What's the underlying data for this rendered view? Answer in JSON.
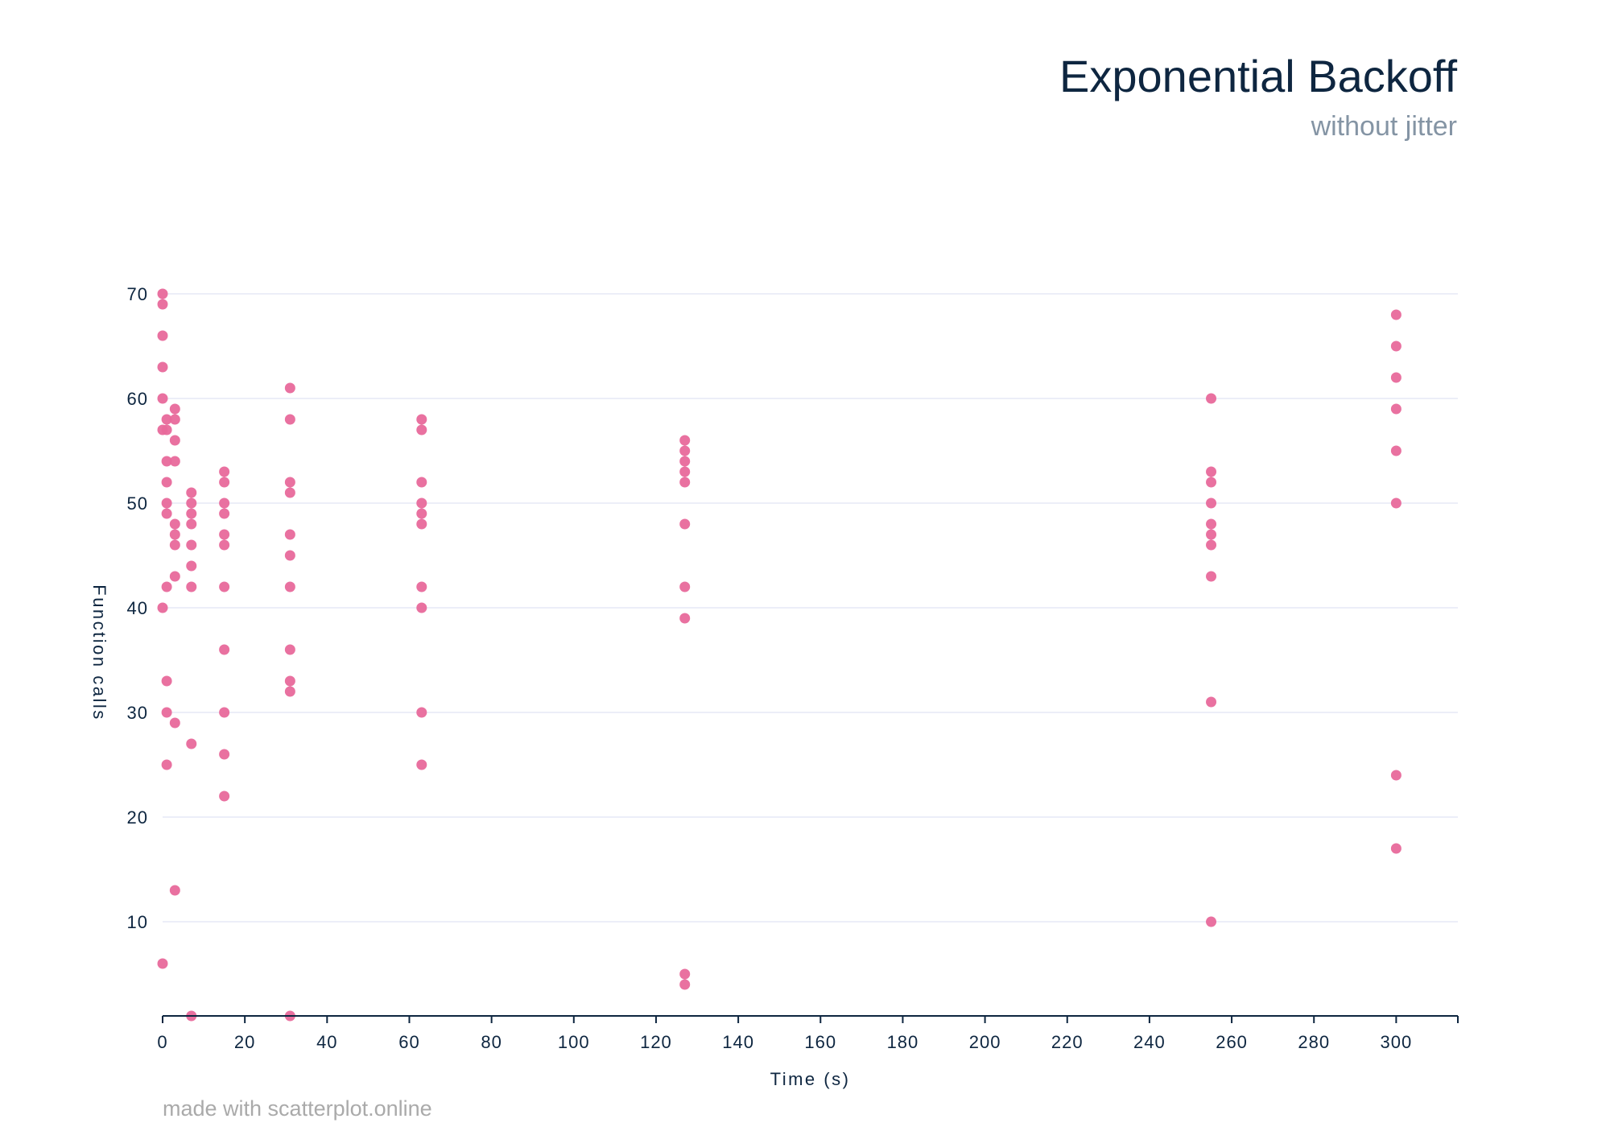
{
  "chart_data": {
    "type": "scatter",
    "title": "Exponential Backoff",
    "subtitle": "without jitter",
    "xlabel": "Time (s)",
    "ylabel": "Function calls",
    "xlim": [
      0,
      315
    ],
    "ylim": [
      1,
      75
    ],
    "x_ticks": [
      "0",
      "20",
      "40",
      "60",
      "80",
      "100",
      "120",
      "140",
      "160",
      "180",
      "200",
      "220",
      "240",
      "260",
      "280",
      "300"
    ],
    "y_ticks": [
      "10",
      "20",
      "30",
      "40",
      "50",
      "60",
      "70"
    ],
    "grid": "horizontal",
    "legend": "none",
    "point_color": "#e8699b",
    "credit": "made with scatterplot.online",
    "points": [
      {
        "x": 0,
        "y": 70
      },
      {
        "x": 0,
        "y": 69
      },
      {
        "x": 0,
        "y": 66
      },
      {
        "x": 0,
        "y": 63
      },
      {
        "x": 0,
        "y": 60
      },
      {
        "x": 0,
        "y": 57
      },
      {
        "x": 0,
        "y": 40
      },
      {
        "x": 0,
        "y": 6
      },
      {
        "x": 1,
        "y": 58
      },
      {
        "x": 1,
        "y": 57
      },
      {
        "x": 1,
        "y": 54
      },
      {
        "x": 1,
        "y": 52
      },
      {
        "x": 1,
        "y": 50
      },
      {
        "x": 1,
        "y": 49
      },
      {
        "x": 1,
        "y": 42
      },
      {
        "x": 1,
        "y": 33
      },
      {
        "x": 1,
        "y": 30
      },
      {
        "x": 1,
        "y": 25
      },
      {
        "x": 3,
        "y": 59
      },
      {
        "x": 3,
        "y": 58
      },
      {
        "x": 3,
        "y": 56
      },
      {
        "x": 3,
        "y": 54
      },
      {
        "x": 3,
        "y": 48
      },
      {
        "x": 3,
        "y": 47
      },
      {
        "x": 3,
        "y": 46
      },
      {
        "x": 3,
        "y": 43
      },
      {
        "x": 3,
        "y": 29
      },
      {
        "x": 3,
        "y": 13
      },
      {
        "x": 7,
        "y": 51
      },
      {
        "x": 7,
        "y": 50
      },
      {
        "x": 7,
        "y": 49
      },
      {
        "x": 7,
        "y": 48
      },
      {
        "x": 7,
        "y": 46
      },
      {
        "x": 7,
        "y": 44
      },
      {
        "x": 7,
        "y": 42
      },
      {
        "x": 7,
        "y": 27
      },
      {
        "x": 7,
        "y": 1
      },
      {
        "x": 15,
        "y": 53
      },
      {
        "x": 15,
        "y": 52
      },
      {
        "x": 15,
        "y": 50
      },
      {
        "x": 15,
        "y": 49
      },
      {
        "x": 15,
        "y": 47
      },
      {
        "x": 15,
        "y": 46
      },
      {
        "x": 15,
        "y": 42
      },
      {
        "x": 15,
        "y": 36
      },
      {
        "x": 15,
        "y": 30
      },
      {
        "x": 15,
        "y": 26
      },
      {
        "x": 15,
        "y": 22
      },
      {
        "x": 31,
        "y": 61
      },
      {
        "x": 31,
        "y": 58
      },
      {
        "x": 31,
        "y": 52
      },
      {
        "x": 31,
        "y": 51
      },
      {
        "x": 31,
        "y": 47
      },
      {
        "x": 31,
        "y": 45
      },
      {
        "x": 31,
        "y": 42
      },
      {
        "x": 31,
        "y": 36
      },
      {
        "x": 31,
        "y": 33
      },
      {
        "x": 31,
        "y": 32
      },
      {
        "x": 31,
        "y": 1
      },
      {
        "x": 63,
        "y": 58
      },
      {
        "x": 63,
        "y": 57
      },
      {
        "x": 63,
        "y": 52
      },
      {
        "x": 63,
        "y": 50
      },
      {
        "x": 63,
        "y": 49
      },
      {
        "x": 63,
        "y": 48
      },
      {
        "x": 63,
        "y": 42
      },
      {
        "x": 63,
        "y": 40
      },
      {
        "x": 63,
        "y": 30
      },
      {
        "x": 63,
        "y": 25
      },
      {
        "x": 127,
        "y": 56
      },
      {
        "x": 127,
        "y": 55
      },
      {
        "x": 127,
        "y": 54
      },
      {
        "x": 127,
        "y": 53
      },
      {
        "x": 127,
        "y": 52
      },
      {
        "x": 127,
        "y": 48
      },
      {
        "x": 127,
        "y": 42
      },
      {
        "x": 127,
        "y": 39
      },
      {
        "x": 127,
        "y": 5
      },
      {
        "x": 127,
        "y": 4
      },
      {
        "x": 255,
        "y": 60
      },
      {
        "x": 255,
        "y": 53
      },
      {
        "x": 255,
        "y": 52
      },
      {
        "x": 255,
        "y": 50
      },
      {
        "x": 255,
        "y": 48
      },
      {
        "x": 255,
        "y": 47
      },
      {
        "x": 255,
        "y": 46
      },
      {
        "x": 255,
        "y": 43
      },
      {
        "x": 255,
        "y": 31
      },
      {
        "x": 255,
        "y": 10
      },
      {
        "x": 300,
        "y": 68
      },
      {
        "x": 300,
        "y": 65
      },
      {
        "x": 300,
        "y": 62
      },
      {
        "x": 300,
        "y": 59
      },
      {
        "x": 300,
        "y": 55
      },
      {
        "x": 300,
        "y": 50
      },
      {
        "x": 300,
        "y": 24
      },
      {
        "x": 300,
        "y": 17
      }
    ]
  }
}
